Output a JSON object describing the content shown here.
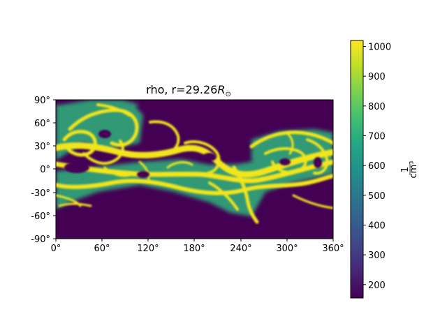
{
  "chart_data": {
    "type": "heatmap",
    "title": "rho, r=29.26",
    "title_subscript": "R",
    "title_symbol": "⊙",
    "xlabel": "",
    "ylabel": "",
    "x_ticks": [
      "0°",
      "60°",
      "120°",
      "180°",
      "240°",
      "300°",
      "360°"
    ],
    "y_ticks": [
      "90°",
      "60°",
      "30°",
      "0°",
      "-30°",
      "-60°",
      "-90°"
    ],
    "xlim": [
      0,
      360
    ],
    "ylim": [
      -90,
      90
    ],
    "colormap": "viridis",
    "colorbar": {
      "range": [
        155,
        1020
      ],
      "ticks": [
        200,
        300,
        400,
        500,
        600,
        700,
        800,
        900,
        1000
      ],
      "tick_labels": [
        "200",
        "300",
        "400",
        "500",
        "600",
        "700",
        "800",
        "900",
        "1000"
      ],
      "label_numerator": "1",
      "label_denominator": "cm³"
    },
    "description_features": {
      "background_value": 160,
      "peak_value": 1000
    }
  }
}
